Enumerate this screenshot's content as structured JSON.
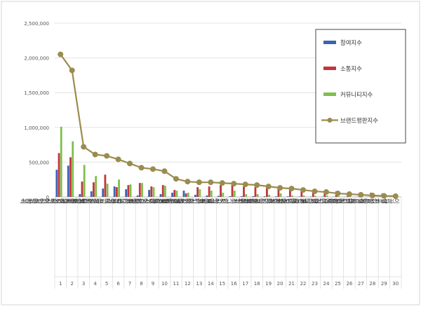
{
  "chart_data": {
    "type": "bar",
    "ylim": [
      0,
      2500000
    ],
    "yticks": [
      "0",
      "500,000",
      "1,000,000",
      "1,500,000",
      "2,000,000",
      "2,500,000"
    ],
    "ytick_values": [
      0,
      500000,
      1000000,
      1500000,
      2000000,
      2500000
    ],
    "grid": true,
    "legend_position": "top-right",
    "x_numbers": [
      "1",
      "2",
      "3",
      "4",
      "5",
      "6",
      "7",
      "8",
      "9",
      "10",
      "11",
      "12",
      "13",
      "14",
      "15",
      "16",
      "17",
      "18",
      "19",
      "20",
      "21",
      "22",
      "23",
      "24",
      "25",
      "26",
      "27",
      "28",
      "29",
      "30"
    ],
    "categories": [
      "정성 성인기저귀",
      "뉴케어 시니어영양식",
      "휴플러스 시니어안마기",
      "대한 보청기",
      "네피게이터 성인용보행기",
      "디펜드 성인기저귀",
      "뷰티플라이프 성인기저귀",
      "스타키 보청기",
      "세기 보청기",
      "참사랑 성인기저귀",
      "케어웰 시니어영양죽",
      "아이온 지팡이",
      "코지워커 성인용보행기",
      "애플론 성인용보행기",
      "힛서클 시니어안마기",
      "시그니아 보청기",
      "키퍼스 성인기저귀",
      "포낙 보청기",
      "오티콘 보청기",
      "와이덱스 보청기",
      "아오스 시니어휠체어",
      "벨톤 보청기",
      "다나온 시니어휠체어",
      "애니웰리프 성인기저귀",
      "웰더스 시니어침대",
      "유니트론 보청기",
      "레보텍 지팡이",
      "허브걸 시니어휠체어",
      "삼홍 성인용보행기",
      "이끌렙 지팡이"
    ],
    "series": [
      {
        "name": "참여지수",
        "color": "#3a63b5",
        "values": [
          390000,
          450000,
          40000,
          80000,
          120000,
          150000,
          110000,
          20000,
          100000,
          40000,
          60000,
          90000,
          30000,
          20000,
          15000,
          10000,
          10000,
          10000,
          8000,
          8000,
          8000,
          5000,
          5000,
          5000,
          3000,
          3000,
          3000,
          2000,
          2000,
          2000
        ]
      },
      {
        "name": "소통지수",
        "color": "#c0363b",
        "values": [
          630000,
          570000,
          220000,
          210000,
          320000,
          140000,
          170000,
          200000,
          150000,
          170000,
          100000,
          50000,
          140000,
          150000,
          170000,
          170000,
          150000,
          140000,
          140000,
          120000,
          110000,
          120000,
          70000,
          90000,
          80000,
          60000,
          50000,
          60000,
          50000,
          30000
        ]
      },
      {
        "name": "커뮤니티지수",
        "color": "#7fbf4c",
        "values": [
          1010000,
          800000,
          460000,
          300000,
          190000,
          250000,
          180000,
          200000,
          140000,
          160000,
          90000,
          60000,
          110000,
          90000,
          60000,
          90000,
          40000,
          40000,
          30000,
          50000,
          20000,
          20000,
          15000,
          20000,
          10000,
          10000,
          8000,
          6000,
          5000,
          3000
        ]
      },
      {
        "name": "브랜드평판지수",
        "color": "#9a8c4e",
        "values": [
          2050000,
          1820000,
          720000,
          610000,
          590000,
          540000,
          480000,
          420000,
          400000,
          370000,
          260000,
          220000,
          210000,
          210000,
          200000,
          190000,
          180000,
          170000,
          150000,
          130000,
          120000,
          100000,
          80000,
          70000,
          50000,
          40000,
          30000,
          20000,
          15000,
          10000
        ]
      }
    ],
    "title": "",
    "xlabel": "",
    "ylabel": ""
  }
}
